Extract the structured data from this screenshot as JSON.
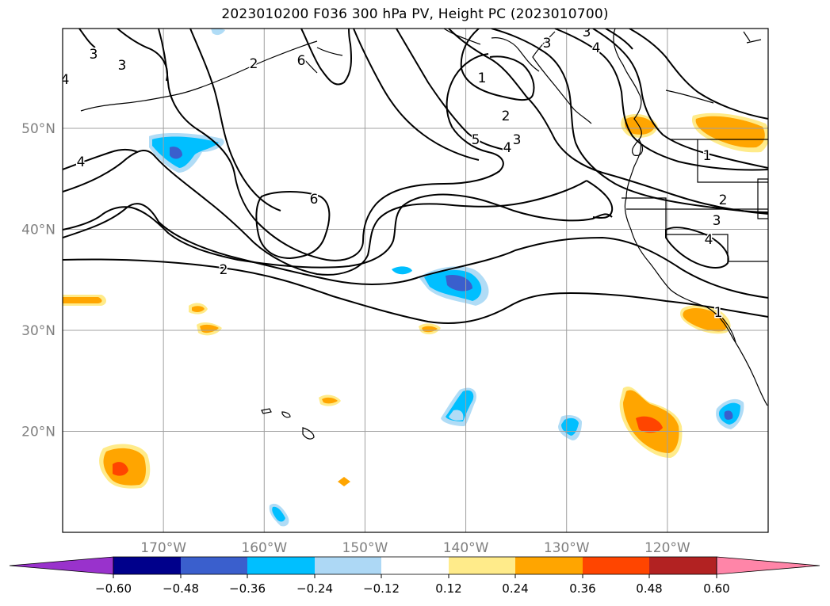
{
  "title": "2023010200 F036 300 hPa PV, Height PC (2023010700)",
  "map": {
    "lat_labels": [
      {
        "text": "50°N",
        "lat": 50
      },
      {
        "text": "40°N",
        "lat": 40
      },
      {
        "text": "30°N",
        "lat": 30
      },
      {
        "text": "20°N",
        "lat": 20
      }
    ],
    "lon_labels": [
      {
        "text": "170°W",
        "lon": -170
      },
      {
        "text": "160°W",
        "lon": -160
      },
      {
        "text": "150°W",
        "lon": -150
      },
      {
        "text": "140°W",
        "lon": -140
      },
      {
        "text": "130°W",
        "lon": -130
      },
      {
        "text": "120°W",
        "lon": -120
      }
    ],
    "contour_labels": [
      "3",
      "3",
      "4",
      "4",
      "6",
      "2",
      "6",
      "2",
      "1",
      "2",
      "3",
      "5",
      "4",
      "3",
      "3",
      "4",
      "1",
      "2",
      "3",
      "4",
      "1"
    ],
    "grid_color": "#a0a0a0",
    "label_color": "#808080"
  },
  "colorbar": {
    "ticks": [
      "−0.60",
      "−0.48",
      "−0.36",
      "−0.24",
      "−0.12",
      "0.12",
      "0.24",
      "0.36",
      "0.48",
      "0.60"
    ],
    "colors": [
      "#9932cc",
      "#00008b",
      "#3a5fcd",
      "#00bfff",
      "#add8f5",
      "#ffffff",
      "#ffeb8a",
      "#ffa500",
      "#ff4500",
      "#b22222",
      "#ff85a8"
    ]
  }
}
